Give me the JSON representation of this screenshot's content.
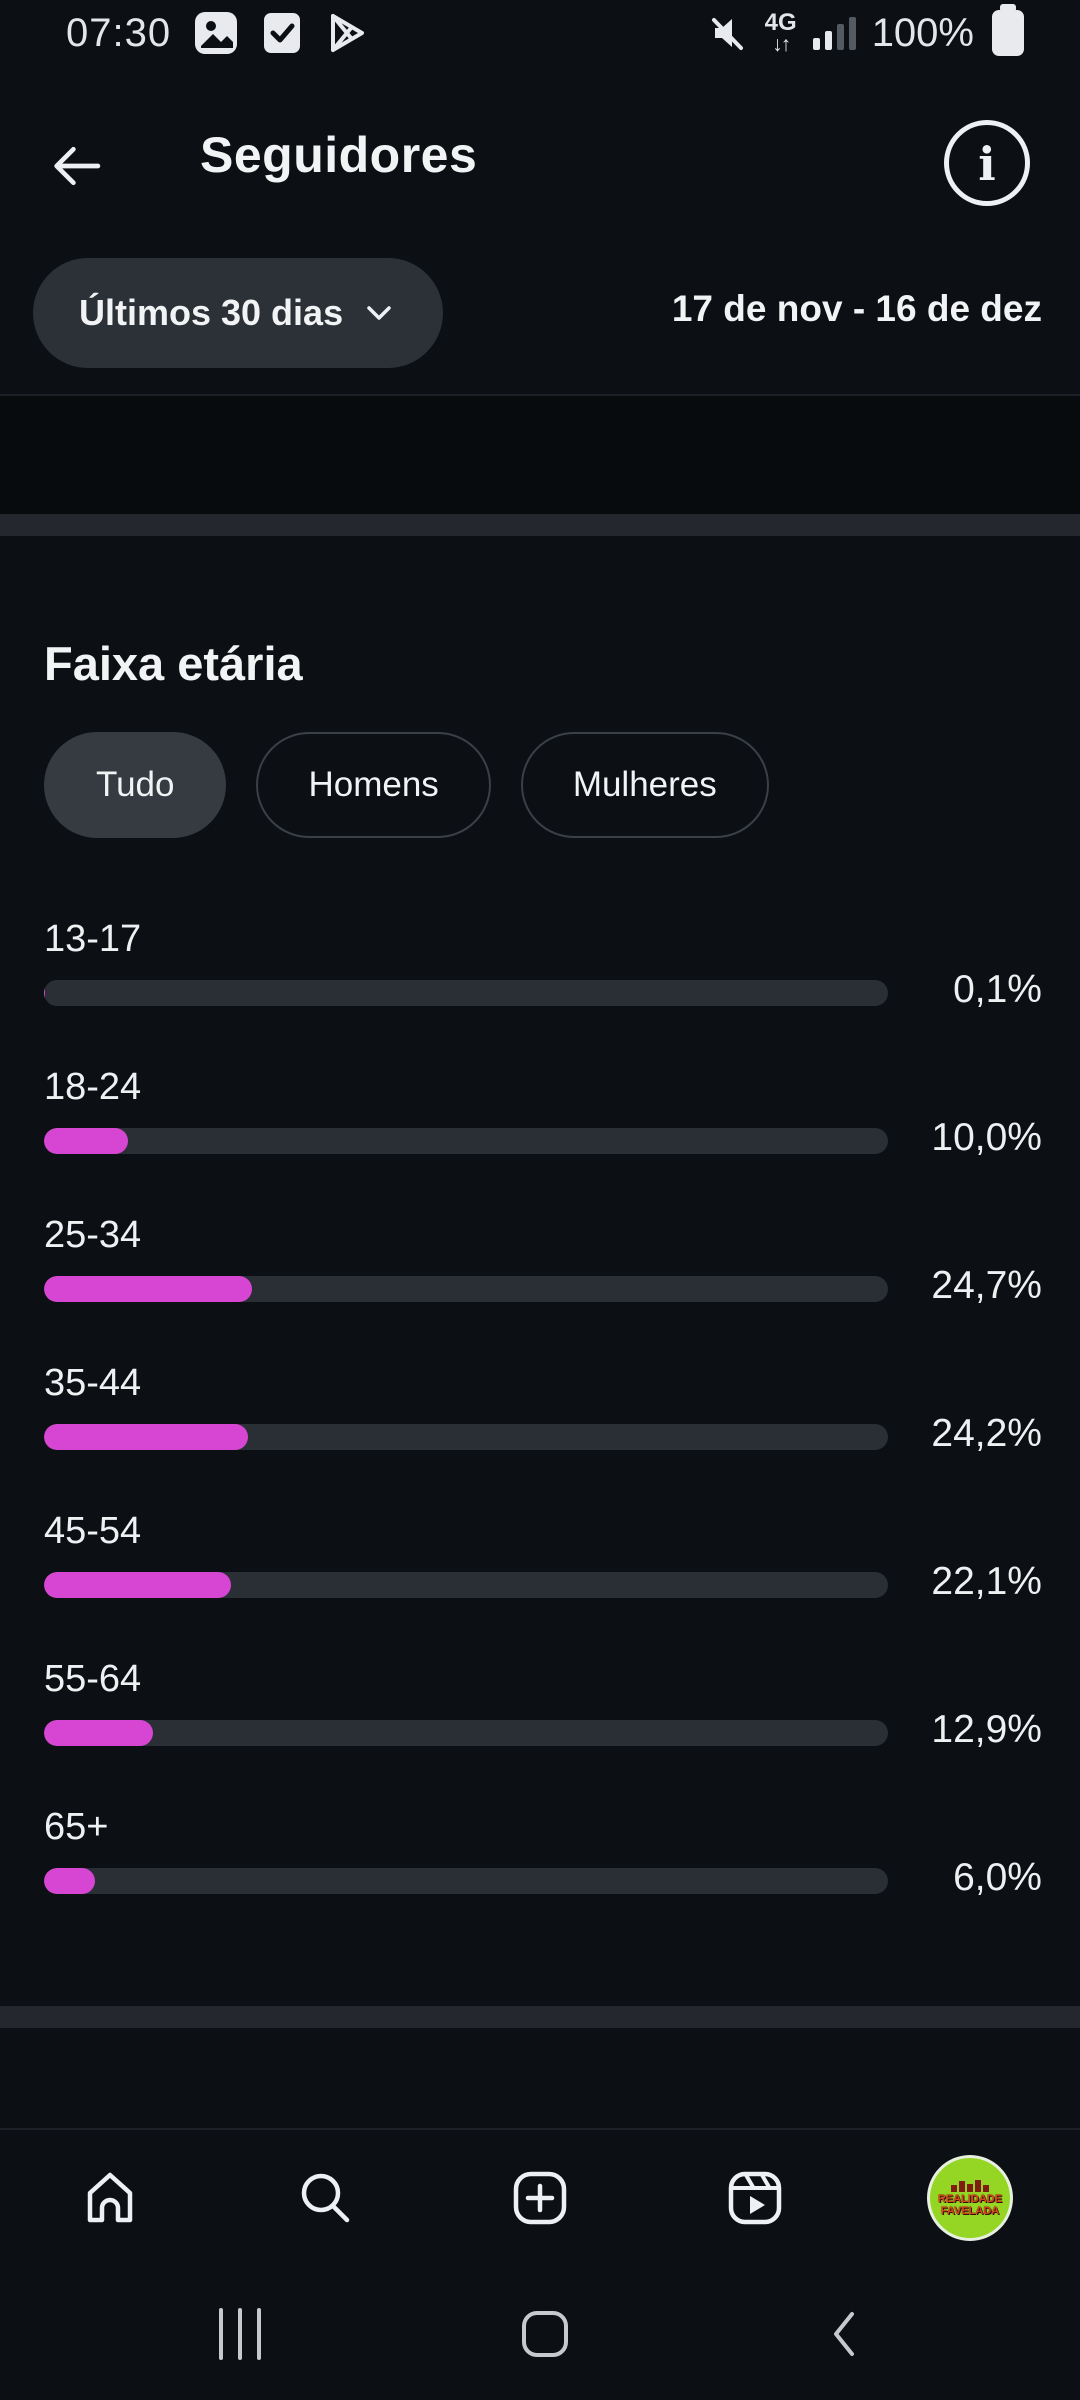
{
  "status_bar": {
    "time": "07:30",
    "left_icons": [
      "gallery-icon",
      "checkbox-icon",
      "play-store-icon"
    ],
    "network_label": "4G",
    "network_arrows": "↓↑",
    "battery_pct": "100%",
    "right_icons": [
      "muted-speaker-icon",
      "4g-icon",
      "signal-bars-icon",
      "battery-icon"
    ]
  },
  "header": {
    "title": "Seguidores",
    "back_icon": "arrow-left-icon",
    "info_icon": "info-circle-icon"
  },
  "period": {
    "chip_label": "Últimos 30 dias",
    "chip_icon": "chevron-down-icon",
    "date_range": "17 de nov - 16 de dez"
  },
  "section": {
    "title": "Faixa etária",
    "tabs": [
      {
        "label": "Tudo",
        "selected": true
      },
      {
        "label": "Homens",
        "selected": false
      },
      {
        "label": "Mulheres",
        "selected": false
      }
    ]
  },
  "chart_data": {
    "type": "bar",
    "orientation": "horizontal",
    "title": "Faixa etária",
    "categories": [
      "13-17",
      "18-24",
      "25-34",
      "35-44",
      "45-54",
      "55-64",
      "65+"
    ],
    "values": [
      0.1,
      10.0,
      24.7,
      24.2,
      22.1,
      12.9,
      6.0
    ],
    "value_labels": [
      "0,1%",
      "10,0%",
      "24,7%",
      "24,2%",
      "22,1%",
      "12,9%",
      "6,0%"
    ],
    "xlim": [
      0,
      100
    ],
    "bar_color": "#d746d2",
    "track_color": "#2a2e35"
  },
  "bottom_nav": {
    "items": [
      "home-icon",
      "search-icon",
      "create-post-icon",
      "reels-icon",
      "profile-avatar"
    ],
    "avatar": {
      "line1": "REALIDADE",
      "line2": "FAVELADA"
    }
  },
  "android_nav": {
    "items": [
      "recent-apps",
      "home",
      "back"
    ]
  },
  "colors": {
    "background": "#0c0f13",
    "accent_bar": "#d746d2",
    "bar_track": "#2a2e35",
    "chip_bg": "#2c3138",
    "divider": "#24282e",
    "avatar_green": "#95d624"
  }
}
